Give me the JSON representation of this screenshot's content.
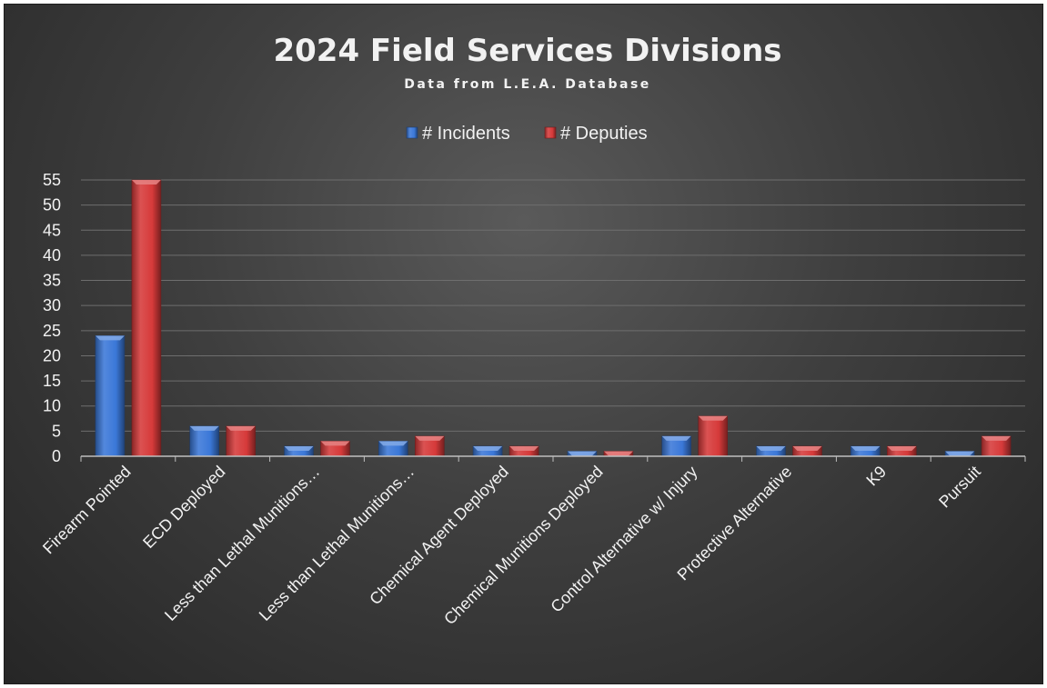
{
  "chart_data": {
    "type": "bar",
    "title": "2024 Field Services Divisions",
    "subtitle": "Data from L.E.A. Database",
    "legend_position": "top",
    "grid": true,
    "categories": [
      "Firearm Pointed",
      "ECD Deployed",
      "Less than Lethal Munitions…",
      "Less than Lethal Munitions…",
      "Chemical Agent Deployed",
      "Chemical Munitions Deployed",
      "Control Alternative w/ Injury",
      "Protective Alternative",
      "K9",
      "Pursuit"
    ],
    "series": [
      {
        "name": "# Incidents",
        "color": "#3b78d8",
        "values": [
          24,
          6,
          2,
          3,
          2,
          1,
          4,
          2,
          2,
          1
        ]
      },
      {
        "name": "# Deputies",
        "color": "#d63a3a",
        "values": [
          55,
          6,
          3,
          4,
          2,
          1,
          8,
          2,
          2,
          4
        ]
      }
    ],
    "ylim": [
      0,
      55
    ],
    "yticks": [
      0,
      5,
      10,
      15,
      20,
      25,
      30,
      35,
      40,
      45,
      50,
      55
    ],
    "xlabel": "",
    "ylabel": ""
  }
}
